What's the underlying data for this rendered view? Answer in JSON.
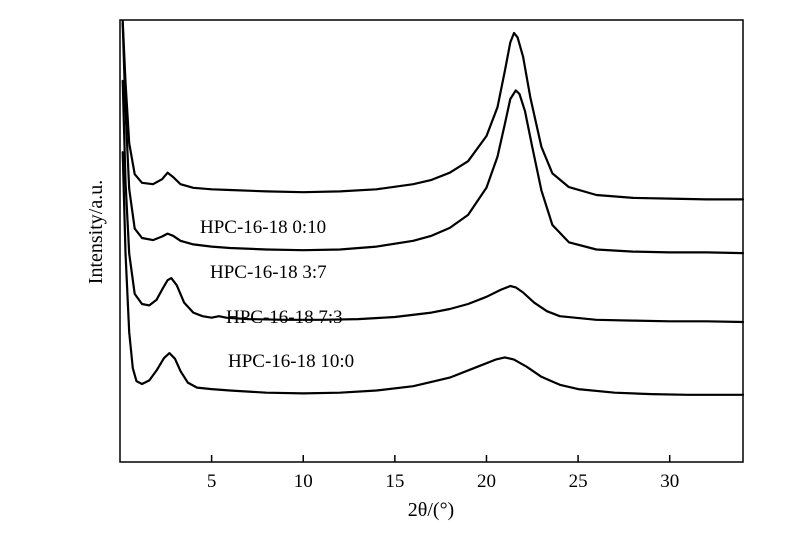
{
  "chart_data": {
    "type": "line",
    "xlabel": "2θ/(°)",
    "ylabel": "Intensity/a.u.",
    "xlim": [
      0,
      34
    ],
    "x_ticks": [
      5,
      10,
      15,
      20,
      25,
      30
    ],
    "y_tick_labels": "none",
    "grid": false,
    "legend": "inline labels",
    "series": [
      {
        "name": "HPC-16-18 0:10",
        "points": [
          [
            0.15,
            350
          ],
          [
            0.3,
            250
          ],
          [
            0.5,
            165
          ],
          [
            0.8,
            122
          ],
          [
            1.2,
            110
          ],
          [
            1.8,
            108
          ],
          [
            2.3,
            115
          ],
          [
            2.6,
            124
          ],
          [
            2.9,
            118
          ],
          [
            3.3,
            108
          ],
          [
            4,
            103
          ],
          [
            5,
            101
          ],
          [
            6,
            100
          ],
          [
            8,
            98
          ],
          [
            10,
            97
          ],
          [
            12,
            98
          ],
          [
            14,
            101
          ],
          [
            16,
            108
          ],
          [
            17,
            114
          ],
          [
            18,
            124
          ],
          [
            19,
            140
          ],
          [
            20,
            175
          ],
          [
            20.6,
            215
          ],
          [
            21,
            265
          ],
          [
            21.3,
            305
          ],
          [
            21.5,
            318
          ],
          [
            21.7,
            312
          ],
          [
            22,
            285
          ],
          [
            22.4,
            228
          ],
          [
            23,
            160
          ],
          [
            23.6,
            123
          ],
          [
            24.5,
            104
          ],
          [
            26,
            93
          ],
          [
            28,
            89
          ],
          [
            30,
            88
          ],
          [
            32,
            87
          ],
          [
            34,
            87
          ]
        ]
      },
      {
        "name": "HPC-16-18 3:7",
        "points": [
          [
            0.15,
            380
          ],
          [
            0.3,
            260
          ],
          [
            0.5,
            150
          ],
          [
            0.8,
            95
          ],
          [
            1.2,
            82
          ],
          [
            1.8,
            79
          ],
          [
            2.3,
            84
          ],
          [
            2.6,
            88
          ],
          [
            2.9,
            85
          ],
          [
            3.3,
            78
          ],
          [
            4,
            73
          ],
          [
            5,
            70
          ],
          [
            6,
            68
          ],
          [
            8,
            66
          ],
          [
            10,
            65
          ],
          [
            12,
            66
          ],
          [
            14,
            70
          ],
          [
            16,
            78
          ],
          [
            17,
            85
          ],
          [
            18,
            96
          ],
          [
            19,
            114
          ],
          [
            20,
            152
          ],
          [
            20.6,
            195
          ],
          [
            21,
            240
          ],
          [
            21.3,
            275
          ],
          [
            21.6,
            287
          ],
          [
            21.8,
            282
          ],
          [
            22.1,
            258
          ],
          [
            22.5,
            208
          ],
          [
            23,
            148
          ],
          [
            23.6,
            100
          ],
          [
            24.5,
            76
          ],
          [
            26,
            66
          ],
          [
            28,
            63
          ],
          [
            30,
            62
          ],
          [
            32,
            62
          ],
          [
            34,
            61
          ]
        ]
      },
      {
        "name": "HPC-16-18 7:3",
        "points": [
          [
            0.15,
            360
          ],
          [
            0.3,
            220
          ],
          [
            0.5,
            120
          ],
          [
            0.8,
            64
          ],
          [
            1.2,
            50
          ],
          [
            1.6,
            48
          ],
          [
            2,
            56
          ],
          [
            2.3,
            70
          ],
          [
            2.6,
            83
          ],
          [
            2.8,
            86
          ],
          [
            3.1,
            76
          ],
          [
            3.5,
            52
          ],
          [
            4,
            38
          ],
          [
            4.5,
            33
          ],
          [
            5,
            31
          ],
          [
            5.4,
            33
          ],
          [
            5.8,
            31
          ],
          [
            7,
            29
          ],
          [
            9,
            28
          ],
          [
            11,
            28
          ],
          [
            13,
            29
          ],
          [
            15,
            32
          ],
          [
            17,
            38
          ],
          [
            18,
            43
          ],
          [
            19,
            50
          ],
          [
            20,
            60
          ],
          [
            20.8,
            70
          ],
          [
            21.3,
            75
          ],
          [
            21.6,
            73
          ],
          [
            22,
            66
          ],
          [
            22.6,
            52
          ],
          [
            23.3,
            40
          ],
          [
            24,
            33
          ],
          [
            26,
            28
          ],
          [
            28,
            27
          ],
          [
            30,
            26
          ],
          [
            32,
            26
          ],
          [
            34,
            25
          ]
        ]
      },
      {
        "name": "HPC-16-18 10:0",
        "points": [
          [
            0.15,
            340
          ],
          [
            0.3,
            200
          ],
          [
            0.5,
            90
          ],
          [
            0.7,
            40
          ],
          [
            0.9,
            22
          ],
          [
            1.2,
            18
          ],
          [
            1.6,
            23
          ],
          [
            2,
            37
          ],
          [
            2.4,
            54
          ],
          [
            2.7,
            61
          ],
          [
            3,
            53
          ],
          [
            3.3,
            36
          ],
          [
            3.7,
            20
          ],
          [
            4.2,
            13
          ],
          [
            5,
            11
          ],
          [
            6,
            9
          ],
          [
            8,
            6
          ],
          [
            10,
            5
          ],
          [
            12,
            6
          ],
          [
            14,
            9
          ],
          [
            16,
            15
          ],
          [
            18,
            27
          ],
          [
            19.5,
            42
          ],
          [
            20.5,
            52
          ],
          [
            21,
            55
          ],
          [
            21.5,
            52
          ],
          [
            22.2,
            42
          ],
          [
            23,
            28
          ],
          [
            24,
            17
          ],
          [
            25,
            11
          ],
          [
            27,
            6
          ],
          [
            29,
            4
          ],
          [
            31,
            3
          ],
          [
            34,
            3
          ]
        ]
      }
    ]
  }
}
